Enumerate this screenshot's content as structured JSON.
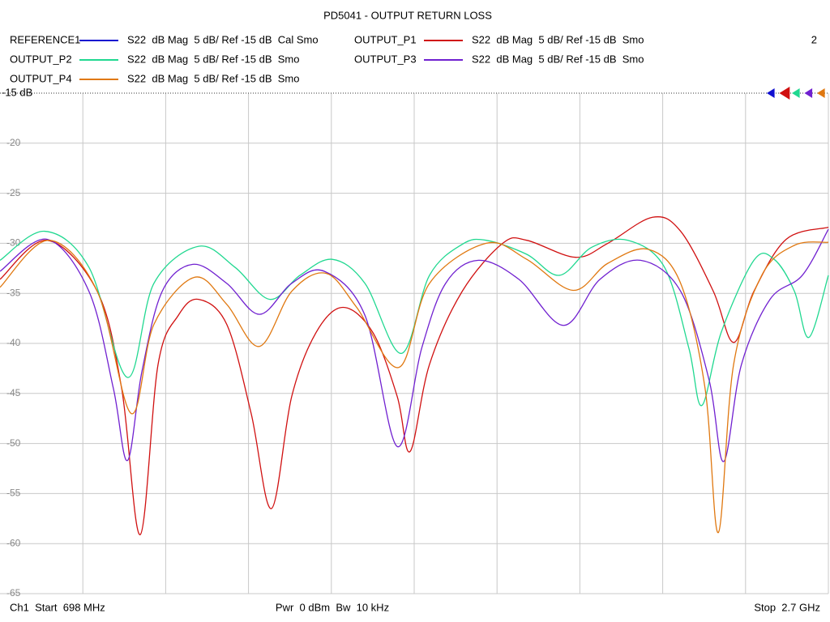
{
  "chart_data": {
    "type": "line",
    "title": "PD5041 - OUTPUT RETURN LOSS",
    "window_number": "2",
    "xlim": [
      698,
      2700
    ],
    "x_divisions": 10,
    "ylim": [
      -65,
      -15
    ],
    "yticks": [
      {
        "value": -15,
        "label": "-15 dB"
      },
      -20,
      -25,
      -30,
      -35,
      -40,
      -45,
      -50,
      -55,
      -60,
      -65
    ],
    "grid": true,
    "series": [
      {
        "name": "REFERENCE1",
        "color": "#1010d0",
        "description": "S22  dB Mag  5 dB/ Ref -15 dB  Cal Smo",
        "x": [],
        "values": []
      },
      {
        "name": "OUTPUT_P1",
        "color": "#d01010",
        "description": "S22  dB Mag  5 dB/ Ref -15 dB  Smo",
        "x": [
          698,
          812,
          933,
          992,
          1037,
          1080,
          1129,
          1178,
          1246,
          1305,
          1354,
          1403,
          1462,
          1527,
          1599,
          1658,
          1689,
          1736,
          1815,
          1913,
          1971,
          2089,
          2167,
          2275,
          2343,
          2422,
          2471,
          2520,
          2598,
          2700
        ],
        "values": [
          -33.6,
          -29.7,
          -34.8,
          -44.5,
          -59.1,
          -42.1,
          -37.2,
          -35.6,
          -38.1,
          -47,
          -56.5,
          -45.3,
          -38.9,
          -36.4,
          -38.9,
          -45.3,
          -50.8,
          -42.1,
          -34.8,
          -30,
          -29.7,
          -31.4,
          -30,
          -27.4,
          -28.8,
          -34.8,
          -39.9,
          -34.8,
          -29.6,
          -28.4
        ]
      },
      {
        "name": "OUTPUT_P2",
        "color": "#20d890",
        "description": "S22  dB Mag  5 dB/ Ref -15 dB  Smo",
        "x": [
          698,
          806,
          913,
          1006,
          1070,
          1178,
          1266,
          1350,
          1423,
          1501,
          1580,
          1668,
          1736,
          1815,
          1873,
          1971,
          2050,
          2128,
          2216,
          2304,
          2363,
          2394,
          2441,
          2520,
          2569,
          2618,
          2653,
          2700
        ],
        "values": [
          -31.7,
          -28.8,
          -32.4,
          -43.4,
          -34,
          -30.3,
          -32.4,
          -35.6,
          -33.2,
          -31.6,
          -34,
          -41,
          -33.2,
          -30.1,
          -29.7,
          -31.1,
          -33.2,
          -30.4,
          -29.7,
          -32.4,
          -40.5,
          -46.2,
          -38.9,
          -31.7,
          -31.6,
          -34.8,
          -39.4,
          -33.2
        ]
      },
      {
        "name": "OUTPUT_P3",
        "color": "#7020d0",
        "description": "S22  dB Mag  5 dB/ Ref -15 dB  Smo",
        "x": [
          698,
          812,
          913,
          972,
          1006,
          1041,
          1090,
          1164,
          1246,
          1325,
          1403,
          1482,
          1580,
          1658,
          1717,
          1775,
          1854,
          1952,
          2060,
          2148,
          2246,
          2343,
          2412,
          2447,
          2490,
          2559,
          2637,
          2700
        ],
        "values": [
          -32.8,
          -29.6,
          -34.8,
          -44.5,
          -51.7,
          -42.8,
          -34.8,
          -32.1,
          -34,
          -37.1,
          -34,
          -32.8,
          -37.2,
          -50.3,
          -40.5,
          -34,
          -31.7,
          -33.6,
          -38.2,
          -33.6,
          -31.7,
          -34.8,
          -43.7,
          -51.8,
          -42.1,
          -35.6,
          -33.2,
          -28.6
        ]
      },
      {
        "name": "OUTPUT_P4",
        "color": "#e07810",
        "description": "S22  dB Mag  5 dB/ Ref -15 dB  Smo",
        "x": [
          698,
          816,
          933,
          1015,
          1070,
          1168,
          1246,
          1325,
          1403,
          1486,
          1560,
          1662,
          1736,
          1873,
          1971,
          2083,
          2167,
          2265,
          2343,
          2402,
          2434,
          2471,
          2539,
          2618,
          2700
        ],
        "values": [
          -34.4,
          -29.7,
          -34.8,
          -47,
          -38.1,
          -33.4,
          -36.1,
          -40.3,
          -34.8,
          -33,
          -36.4,
          -42.4,
          -34,
          -30,
          -31.6,
          -34.7,
          -32,
          -30.6,
          -34,
          -44.5,
          -58.9,
          -42.1,
          -33.2,
          -30.2,
          -29.9
        ]
      }
    ],
    "footer": {
      "start": "Ch1  Start  698 MHz",
      "power": "Pwr  0 dBm  Bw  10 kHz",
      "stop": "Stop  2.7 GHz"
    }
  }
}
